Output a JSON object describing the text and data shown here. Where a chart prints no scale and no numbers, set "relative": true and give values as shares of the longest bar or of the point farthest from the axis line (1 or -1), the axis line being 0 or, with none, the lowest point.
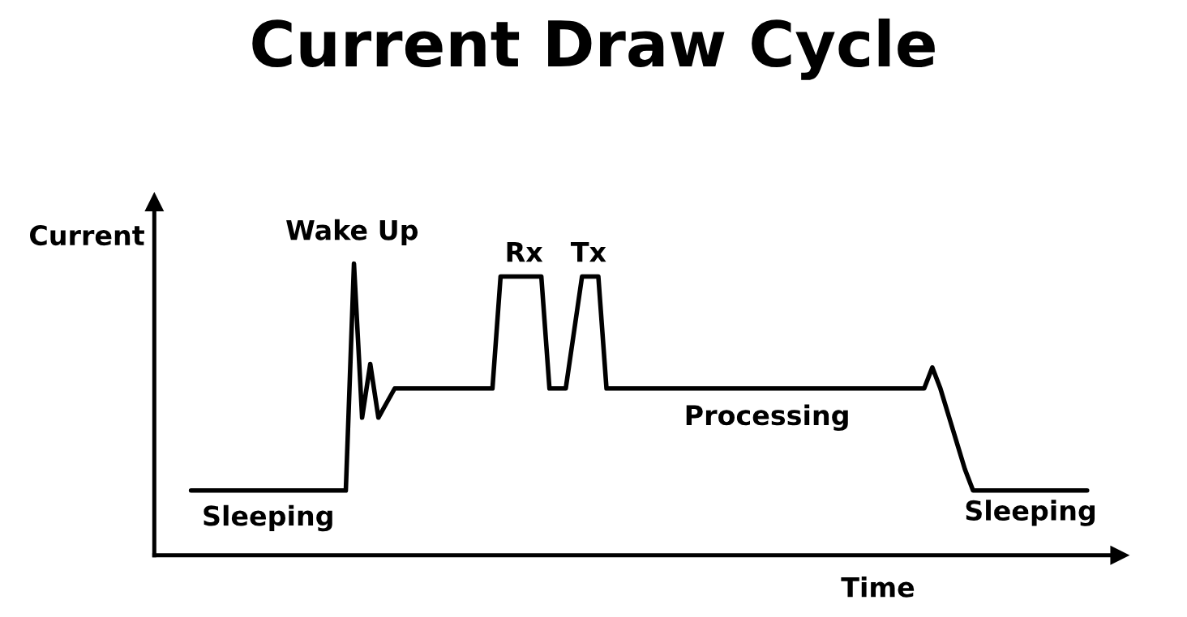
{
  "chart_data": {
    "type": "line",
    "title": "Current Draw Cycle",
    "xlabel": "Time",
    "ylabel": "Current",
    "relative": true,
    "tick_labels": false,
    "categories": [
      null,
      null,
      null,
      null,
      null,
      null,
      null,
      null,
      null,
      null,
      null,
      null,
      null,
      null,
      null,
      null,
      null,
      null,
      null,
      null,
      null,
      null,
      null,
      null,
      null,
      null,
      null,
      null,
      null,
      null,
      null,
      null,
      null,
      null,
      null,
      null,
      null,
      null,
      null,
      null,
      null,
      null,
      null,
      null,
      null,
      null,
      null,
      null,
      null,
      null,
      null,
      null,
      null,
      null,
      null,
      null,
      null,
      null,
      null,
      null,
      null,
      null,
      null,
      null,
      null,
      null,
      null,
      null,
      null,
      null,
      null,
      null,
      null,
      null,
      null,
      null,
      null,
      null,
      null,
      null,
      null,
      null,
      null,
      null,
      null,
      null,
      null,
      null,
      null,
      null,
      null,
      null,
      null,
      null,
      null,
      null,
      null,
      null,
      null,
      null,
      null,
      null,
      null,
      null,
      null,
      null,
      null,
      null,
      null,
      null,
      null
    ],
    "series": [
      {
        "color": "#000000",
        "values": [
          0.222,
          0.222,
          0.222,
          0.222,
          0.222,
          0.222,
          0.222,
          0.222,
          0.222,
          0.222,
          0.222,
          0.222,
          0.222,
          0.222,
          0.222,
          0.222,
          0.222,
          0.222,
          0.222,
          0.222,
          1,
          0.472,
          0.656,
          0.472,
          0.522,
          0.572,
          0.572,
          0.572,
          0.572,
          0.572,
          0.572,
          0.572,
          0.572,
          0.572,
          0.572,
          0.572,
          0.572,
          0.572,
          0.956,
          0.956,
          0.956,
          0.956,
          0.956,
          0.956,
          0.572,
          0.572,
          0.572,
          0.764,
          0.956,
          0.956,
          0.956,
          0.572,
          0.572,
          0.572,
          0.572,
          0.572,
          0.572,
          0.572,
          0.572,
          0.572,
          0.572,
          0.572,
          0.572,
          0.572,
          0.572,
          0.572,
          0.572,
          0.572,
          0.572,
          0.572,
          0.572,
          0.572,
          0.572,
          0.572,
          0.572,
          0.572,
          0.572,
          0.572,
          0.572,
          0.572,
          0.572,
          0.572,
          0.572,
          0.572,
          0.572,
          0.572,
          0.572,
          0.572,
          0.572,
          0.572,
          0.572,
          0.644,
          0.571,
          0.479,
          0.387,
          0.295,
          0.222,
          0.222,
          0.222,
          0.222,
          0.222,
          0.222,
          0.222,
          0.222,
          0.222,
          0.222,
          0.222,
          0.222,
          0.222,
          0.222,
          0.222
        ]
      }
    ],
    "annotations": [
      "Wake Up",
      "Rx",
      "Tx",
      "Processing",
      "Sleeping",
      "Sleeping"
    ]
  }
}
